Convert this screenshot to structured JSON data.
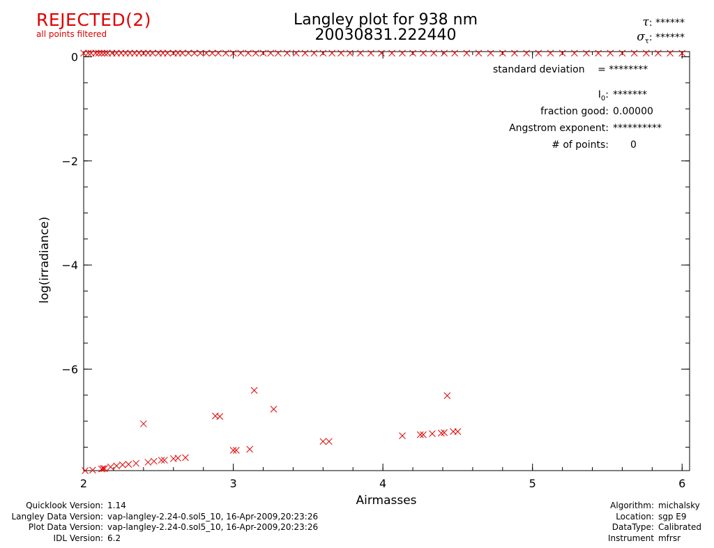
{
  "header": {
    "status": "REJECTED(2)",
    "status_note": "all points filtered",
    "title_line1": "Langley plot for 938 nm",
    "title_line2": "20030831.222440",
    "tau_symbol": "τ",
    "tau_value": "******",
    "sigma_symbol": "σ",
    "sigma_sub": "τ",
    "sigma_value": "******"
  },
  "stats": {
    "std_dev_label": "standard deviation",
    "std_dev_value": "= ********",
    "i0_label": "I",
    "i0_sub": "0",
    "i0_value": "*******",
    "fraction_good_label": "fraction good:",
    "fraction_good_value": "0.00000",
    "angstrom_label": "Angstrom exponent:",
    "angstrom_value": "**********",
    "npoints_label": "# of points:",
    "npoints_value": "0"
  },
  "colors": {
    "points": "#e00000",
    "axes": "#000000",
    "status": "#e00000"
  },
  "chart_data": {
    "type": "scatter",
    "title": "Langley plot for 938 nm",
    "subtitle": "20030831.222440",
    "xlabel": "Airmasses",
    "ylabel": "log(irradiance)",
    "xlim": [
      2,
      6.05
    ],
    "ylim": [
      -7.95,
      0.1
    ],
    "xticks": [
      2,
      3,
      4,
      5,
      6
    ],
    "xtick_labels": [
      "2",
      "3",
      "4",
      "5",
      "6"
    ],
    "yticks": [
      0,
      -2,
      -4,
      -6
    ],
    "ytick_labels": [
      "0",
      "−2",
      "−4",
      "−6"
    ],
    "grid": false,
    "marker": "x",
    "series": [
      {
        "points": [
          [
            2.01,
            -7.95
          ],
          [
            2.06,
            -7.94
          ],
          [
            2.12,
            -7.92
          ],
          [
            2.13,
            -7.91
          ],
          [
            2.14,
            -7.91
          ],
          [
            2.18,
            -7.88
          ],
          [
            2.22,
            -7.86
          ],
          [
            2.26,
            -7.84
          ],
          [
            2.3,
            -7.83
          ],
          [
            2.35,
            -7.81
          ],
          [
            2.4,
            -7.05
          ],
          [
            2.43,
            -7.79
          ],
          [
            2.47,
            -7.77
          ],
          [
            2.52,
            -7.75
          ],
          [
            2.54,
            -7.75
          ],
          [
            2.6,
            -7.72
          ],
          [
            2.63,
            -7.71
          ],
          [
            2.68,
            -7.7
          ],
          [
            2.88,
            -6.9
          ],
          [
            2.91,
            -6.91
          ],
          [
            3.0,
            -7.56
          ],
          [
            3.02,
            -7.56
          ],
          [
            3.11,
            -7.54
          ],
          [
            3.14,
            -6.41
          ],
          [
            3.27,
            -6.77
          ],
          [
            3.6,
            -7.39
          ],
          [
            3.64,
            -7.39
          ],
          [
            4.13,
            -7.28
          ],
          [
            4.25,
            -7.26
          ],
          [
            4.27,
            -7.26
          ],
          [
            4.33,
            -7.24
          ],
          [
            4.39,
            -7.23
          ],
          [
            4.41,
            -7.22
          ],
          [
            4.43,
            -6.51
          ],
          [
            4.47,
            -7.2
          ],
          [
            4.5,
            -7.2
          ]
        ]
      },
      {
        "points": [
          [
            2.0,
            0.07
          ],
          [
            2.03,
            0.07
          ],
          [
            2.05,
            0.07
          ],
          [
            2.08,
            0.07
          ],
          [
            2.1,
            0.07
          ],
          [
            2.12,
            0.07
          ],
          [
            2.14,
            0.07
          ],
          [
            2.16,
            0.07
          ],
          [
            2.19,
            0.07
          ],
          [
            2.22,
            0.07
          ],
          [
            2.25,
            0.07
          ],
          [
            2.28,
            0.07
          ],
          [
            2.31,
            0.07
          ],
          [
            2.34,
            0.07
          ],
          [
            2.37,
            0.07
          ],
          [
            2.4,
            0.07
          ],
          [
            2.43,
            0.07
          ],
          [
            2.46,
            0.07
          ],
          [
            2.5,
            0.07
          ],
          [
            2.53,
            0.07
          ],
          [
            2.56,
            0.07
          ],
          [
            2.6,
            0.07
          ],
          [
            2.63,
            0.07
          ],
          [
            2.66,
            0.07
          ],
          [
            2.7,
            0.07
          ],
          [
            2.74,
            0.07
          ],
          [
            2.78,
            0.07
          ],
          [
            2.82,
            0.07
          ],
          [
            2.86,
            0.07
          ],
          [
            2.9,
            0.07
          ],
          [
            2.95,
            0.07
          ],
          [
            3.0,
            0.07
          ],
          [
            3.05,
            0.07
          ],
          [
            3.1,
            0.07
          ],
          [
            3.15,
            0.07
          ],
          [
            3.2,
            0.07
          ],
          [
            3.25,
            0.07
          ],
          [
            3.3,
            0.07
          ],
          [
            3.36,
            0.07
          ],
          [
            3.42,
            0.07
          ],
          [
            3.48,
            0.07
          ],
          [
            3.54,
            0.07
          ],
          [
            3.6,
            0.07
          ],
          [
            3.66,
            0.07
          ],
          [
            3.72,
            0.07
          ],
          [
            3.78,
            0.07
          ],
          [
            3.85,
            0.07
          ],
          [
            3.92,
            0.07
          ],
          [
            3.99,
            0.07
          ],
          [
            4.06,
            0.07
          ],
          [
            4.13,
            0.07
          ],
          [
            4.2,
            0.07
          ],
          [
            4.27,
            0.07
          ],
          [
            4.34,
            0.07
          ],
          [
            4.41,
            0.07
          ],
          [
            4.48,
            0.07
          ],
          [
            4.56,
            0.07
          ],
          [
            4.64,
            0.07
          ],
          [
            4.72,
            0.07
          ],
          [
            4.8,
            0.07
          ],
          [
            4.88,
            0.07
          ],
          [
            4.96,
            0.07
          ],
          [
            5.04,
            0.07
          ],
          [
            5.12,
            0.07
          ],
          [
            5.2,
            0.07
          ],
          [
            5.28,
            0.07
          ],
          [
            5.36,
            0.07
          ],
          [
            5.44,
            0.07
          ],
          [
            5.52,
            0.07
          ],
          [
            5.6,
            0.07
          ],
          [
            5.68,
            0.07
          ],
          [
            5.76,
            0.07
          ],
          [
            5.84,
            0.07
          ],
          [
            5.92,
            0.07
          ],
          [
            6.0,
            0.07
          ]
        ]
      }
    ]
  },
  "footer_left": [
    {
      "label": "Quicklook Version:",
      "value": "1.14"
    },
    {
      "label": "Langley Data Version:",
      "value": "vap-langley-2.24-0.sol5_10, 16-Apr-2009,20:23:26"
    },
    {
      "label": "Plot Data Version:",
      "value": "vap-langley-2.24-0.sol5_10, 16-Apr-2009,20:23:26"
    },
    {
      "label": "IDL Version:",
      "value": "6.2"
    }
  ],
  "footer_right": [
    {
      "label": "Algorithm:",
      "value": "michalsky"
    },
    {
      "label": "Location:",
      "value": "sgp E9"
    },
    {
      "label": "DataType:",
      "value": "Calibrated"
    },
    {
      "label": "Instrument",
      "value": "mfrsr"
    }
  ]
}
